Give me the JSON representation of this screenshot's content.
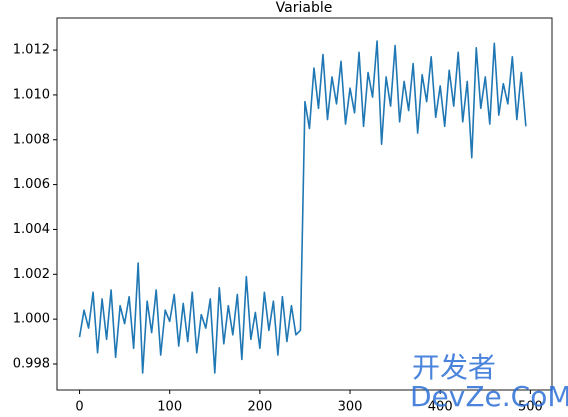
{
  "chart_data": {
    "type": "line",
    "title": "Variable",
    "x": [
      0,
      5,
      10,
      15,
      20,
      25,
      30,
      35,
      40,
      45,
      50,
      55,
      60,
      65,
      70,
      75,
      80,
      85,
      90,
      95,
      100,
      105,
      110,
      115,
      120,
      125,
      130,
      135,
      140,
      145,
      150,
      155,
      160,
      165,
      170,
      175,
      180,
      185,
      190,
      195,
      200,
      205,
      210,
      215,
      220,
      225,
      230,
      235,
      240,
      245,
      250,
      255,
      260,
      265,
      270,
      275,
      280,
      285,
      290,
      295,
      300,
      305,
      310,
      315,
      320,
      325,
      330,
      335,
      340,
      345,
      350,
      355,
      360,
      365,
      370,
      375,
      380,
      385,
      390,
      395,
      400,
      405,
      410,
      415,
      420,
      425,
      430,
      435,
      440,
      445,
      450,
      455,
      460,
      465,
      470,
      475,
      480,
      485,
      490,
      495
    ],
    "series": [
      {
        "color": "#1f77b4",
        "values": [
          0.9992,
          1.0004,
          0.9996,
          1.0012,
          0.9985,
          1.0009,
          0.9991,
          1.0013,
          0.9983,
          1.0006,
          0.9998,
          1.001,
          0.9987,
          1.0025,
          0.9976,
          1.0008,
          0.9994,
          1.0013,
          0.9984,
          1.0004,
          0.9999,
          1.0011,
          0.9988,
          1.0007,
          0.999,
          1.0012,
          0.9985,
          1.0002,
          0.9996,
          1.0009,
          0.9976,
          1.0014,
          0.9989,
          1.0006,
          0.9993,
          1.0011,
          0.9982,
          1.0019,
          0.9991,
          1.0003,
          0.9987,
          1.0012,
          0.9995,
          1.0008,
          0.9984,
          1.001,
          0.999,
          1.0006,
          0.9993,
          0.9995,
          1.0097,
          1.0085,
          1.0112,
          1.0094,
          1.0118,
          1.0089,
          1.0108,
          1.0096,
          1.0115,
          1.0087,
          1.0103,
          1.0092,
          1.0119,
          1.0086,
          1.011,
          1.0099,
          1.0124,
          1.0078,
          1.0108,
          1.0095,
          1.0122,
          1.0088,
          1.0106,
          1.0093,
          1.0114,
          1.0083,
          1.0109,
          1.0097,
          1.0117,
          1.009,
          1.0104,
          1.0086,
          1.0111,
          1.0095,
          1.0119,
          1.0088,
          1.0106,
          1.0072,
          1.0121,
          1.0094,
          1.0108,
          1.0087,
          1.0123,
          1.0091,
          1.0105,
          1.0096,
          1.0117,
          1.0089,
          1.011,
          1.0086
        ]
      }
    ],
    "xlim": [
      -25,
      524
    ],
    "xticks": [
      0,
      100,
      200,
      300,
      400,
      500
    ],
    "ylim": [
      0.99684,
      1.01343
    ],
    "yticks": [
      0.998,
      {
        "value": 1,
        "label": "1.000"
      },
      1.002,
      1.004,
      1.006,
      1.008,
      {
        "value": 1.01,
        "label": "1.010"
      },
      1.012
    ],
    "watermark": [
      "开发者",
      "DevZe.CoM"
    ]
  }
}
